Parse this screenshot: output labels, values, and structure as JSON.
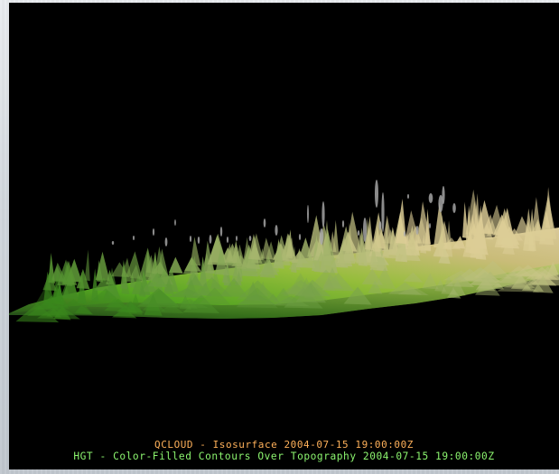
{
  "display": {
    "background_color": "#000000",
    "terrain_low_color": "#4d8d24",
    "terrain_high_color": "#dccc9d",
    "cloud_color": "#aaaaaa",
    "caption_1_color": "#ffb15a",
    "caption_2_color": "#8cf56f"
  },
  "labels": {
    "cloud_layer": "QCLOUD - Isosurface 2004-07-15 19:00:00Z",
    "terrain_layer": "HGT - Color-Filled Contours Over Topography 2004-07-15 19:00:00Z"
  }
}
